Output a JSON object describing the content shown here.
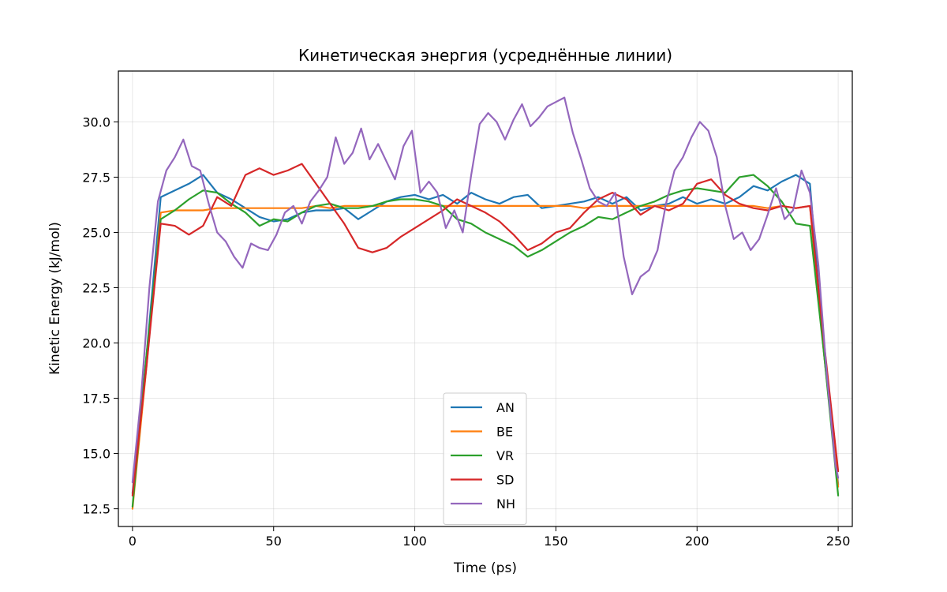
{
  "chart_data": {
    "type": "line",
    "title": "Кинетическая энергия (усреднённые линии)",
    "xlabel": "Time (ps)",
    "ylabel": "Kinetic Energy (kJ/mol)",
    "xlim": [
      -5,
      255
    ],
    "ylim": [
      11.7,
      32.3
    ],
    "xticks": [
      0,
      50,
      100,
      150,
      200,
      250
    ],
    "yticks": [
      12.5,
      15.0,
      17.5,
      20.0,
      22.5,
      25.0,
      27.5,
      30.0
    ],
    "xtick_labels": [
      "0",
      "50",
      "100",
      "150",
      "200",
      "250"
    ],
    "ytick_labels": [
      "12.5",
      "15.0",
      "17.5",
      "20.0",
      "22.5",
      "25.0",
      "27.5",
      "30.0"
    ],
    "grid": true,
    "legend_position": "lower-center",
    "series": [
      {
        "name": "AN",
        "color": "#1f77b4",
        "x": [
          0,
          5,
          10,
          15,
          20,
          25,
          30,
          35,
          40,
          45,
          50,
          55,
          60,
          65,
          70,
          75,
          80,
          85,
          90,
          95,
          100,
          105,
          110,
          115,
          120,
          125,
          130,
          135,
          140,
          145,
          150,
          155,
          160,
          165,
          170,
          175,
          180,
          185,
          190,
          195,
          200,
          205,
          210,
          215,
          220,
          225,
          230,
          235,
          240,
          245,
          250
        ],
        "y": [
          13.2,
          19.5,
          26.6,
          26.9,
          27.2,
          27.6,
          26.8,
          26.5,
          26.1,
          25.7,
          25.5,
          25.6,
          25.9,
          26.0,
          26.0,
          26.1,
          25.6,
          26.0,
          26.4,
          26.6,
          26.7,
          26.5,
          26.7,
          26.3,
          26.8,
          26.5,
          26.3,
          26.6,
          26.7,
          26.1,
          26.2,
          26.3,
          26.4,
          26.6,
          26.3,
          26.6,
          26.0,
          26.2,
          26.3,
          26.6,
          26.3,
          26.5,
          26.3,
          26.6,
          27.1,
          26.9,
          27.3,
          27.6,
          27.2,
          19.5,
          13.6
        ]
      },
      {
        "name": "BE",
        "color": "#ff7f0e",
        "x": [
          0,
          5,
          10,
          15,
          20,
          25,
          30,
          35,
          40,
          45,
          50,
          55,
          60,
          65,
          70,
          75,
          80,
          85,
          90,
          95,
          100,
          105,
          110,
          115,
          120,
          125,
          130,
          135,
          140,
          145,
          150,
          155,
          160,
          165,
          170,
          175,
          180,
          185,
          190,
          195,
          200,
          205,
          210,
          215,
          220,
          225,
          230,
          235,
          240,
          245,
          250
        ],
        "y": [
          12.5,
          19.0,
          25.9,
          26.0,
          26.0,
          26.0,
          26.1,
          26.1,
          26.1,
          26.1,
          26.1,
          26.1,
          26.1,
          26.2,
          26.1,
          26.2,
          26.2,
          26.2,
          26.2,
          26.2,
          26.2,
          26.2,
          26.2,
          26.2,
          26.2,
          26.2,
          26.2,
          26.2,
          26.2,
          26.2,
          26.2,
          26.2,
          26.1,
          26.2,
          26.2,
          26.2,
          26.2,
          26.2,
          26.2,
          26.2,
          26.2,
          26.2,
          26.2,
          26.2,
          26.2,
          26.1,
          26.2,
          26.1,
          26.2,
          19.5,
          13.5
        ]
      },
      {
        "name": "VR",
        "color": "#2ca02c",
        "x": [
          0,
          5,
          10,
          15,
          20,
          25,
          30,
          35,
          40,
          45,
          50,
          55,
          60,
          65,
          70,
          75,
          80,
          85,
          90,
          95,
          100,
          105,
          110,
          115,
          120,
          125,
          130,
          135,
          140,
          145,
          150,
          155,
          160,
          165,
          170,
          175,
          180,
          185,
          190,
          195,
          200,
          205,
          210,
          215,
          220,
          225,
          230,
          235,
          240,
          245,
          250
        ],
        "y": [
          12.6,
          19.5,
          25.6,
          26.0,
          26.5,
          26.9,
          26.8,
          26.3,
          25.9,
          25.3,
          25.6,
          25.5,
          25.9,
          26.2,
          26.3,
          26.1,
          26.1,
          26.2,
          26.4,
          26.5,
          26.5,
          26.4,
          26.2,
          25.6,
          25.4,
          25.0,
          24.7,
          24.4,
          23.9,
          24.2,
          24.6,
          25.0,
          25.3,
          25.7,
          25.6,
          25.9,
          26.2,
          26.4,
          26.7,
          26.9,
          27.0,
          26.9,
          26.8,
          27.5,
          27.6,
          27.1,
          26.4,
          25.4,
          25.3,
          19.5,
          13.1
        ]
      },
      {
        "name": "SD",
        "color": "#d62728",
        "x": [
          0,
          5,
          10,
          15,
          20,
          25,
          30,
          35,
          40,
          45,
          50,
          55,
          60,
          65,
          70,
          75,
          80,
          85,
          90,
          95,
          100,
          105,
          110,
          115,
          120,
          125,
          130,
          135,
          140,
          145,
          150,
          155,
          160,
          165,
          170,
          175,
          180,
          185,
          190,
          195,
          200,
          205,
          210,
          215,
          220,
          225,
          230,
          235,
          240,
          245,
          250
        ],
        "y": [
          13.1,
          19.0,
          25.4,
          25.3,
          24.9,
          25.3,
          26.6,
          26.2,
          27.6,
          27.9,
          27.6,
          27.8,
          28.1,
          27.2,
          26.3,
          25.4,
          24.3,
          24.1,
          24.3,
          24.8,
          25.2,
          25.6,
          26.0,
          26.5,
          26.2,
          25.9,
          25.5,
          24.9,
          24.2,
          24.5,
          25.0,
          25.2,
          25.9,
          26.5,
          26.8,
          26.5,
          25.8,
          26.2,
          26.0,
          26.3,
          27.2,
          27.4,
          26.7,
          26.3,
          26.1,
          26.0,
          26.2,
          26.1,
          26.2,
          20.0,
          14.2
        ]
      },
      {
        "name": "NH",
        "color": "#9467bd",
        "x": [
          0,
          3,
          6,
          9,
          12,
          15,
          18,
          21,
          24,
          27,
          30,
          33,
          36,
          39,
          42,
          45,
          48,
          51,
          54,
          57,
          60,
          63,
          66,
          69,
          72,
          75,
          78,
          81,
          84,
          87,
          90,
          93,
          96,
          99,
          102,
          105,
          108,
          111,
          114,
          117,
          120,
          123,
          126,
          129,
          132,
          135,
          138,
          141,
          144,
          147,
          150,
          153,
          156,
          159,
          162,
          165,
          168,
          171,
          174,
          177,
          180,
          183,
          186,
          189,
          192,
          195,
          198,
          201,
          204,
          207,
          210,
          213,
          216,
          219,
          222,
          225,
          228,
          231,
          234,
          237,
          240,
          243,
          246,
          249,
          250
        ],
        "y": [
          13.7,
          17.5,
          22.5,
          26.4,
          27.8,
          28.4,
          29.2,
          28.0,
          27.8,
          26.3,
          25.0,
          24.6,
          23.9,
          23.4,
          24.5,
          24.3,
          24.2,
          24.9,
          25.9,
          26.2,
          25.4,
          26.4,
          26.9,
          27.5,
          29.3,
          28.1,
          28.6,
          29.7,
          28.3,
          29.0,
          28.2,
          27.4,
          28.9,
          29.6,
          26.8,
          27.3,
          26.8,
          25.2,
          26.0,
          25.0,
          27.6,
          29.9,
          30.4,
          30.0,
          29.2,
          30.1,
          30.8,
          29.8,
          30.2,
          30.7,
          30.9,
          31.1,
          29.5,
          28.3,
          27.0,
          26.4,
          26.2,
          26.8,
          23.9,
          22.2,
          23.0,
          23.3,
          24.2,
          26.3,
          27.8,
          28.4,
          29.3,
          30.0,
          29.6,
          28.4,
          26.2,
          24.7,
          25.0,
          24.2,
          24.7,
          25.8,
          27.0,
          25.6,
          26.0,
          27.8,
          26.8,
          23.5,
          18.5,
          14.5,
          13.9
        ]
      }
    ]
  }
}
